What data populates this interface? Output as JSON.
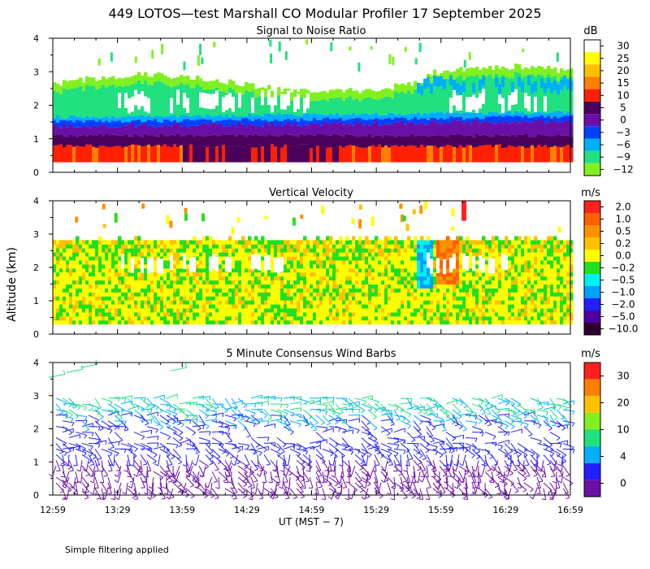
{
  "title": "449 LOTOS—test Marshall CO Modular Profiler 17 September 2025",
  "ylabel": "Altitude (km)",
  "xlabel": "UT  (MST − 7)",
  "footnote": "Simple filtering applied",
  "xticks": [
    "12:59",
    "13:29",
    "13:59",
    "14:29",
    "14:59",
    "15:29",
    "15:59",
    "16:29",
    "16:59"
  ],
  "yticks": [
    "0",
    "1",
    "2",
    "3",
    "4"
  ],
  "chart_data": [
    {
      "type": "heatmap",
      "title": "Signal to Noise Ratio",
      "unit": "dB",
      "x_range": [
        "12:59",
        "16:59"
      ],
      "ylim": [
        0,
        4
      ],
      "colorbar": {
        "labels": [
          "30",
          "25",
          "20",
          "15",
          "10",
          "5",
          "0",
          "−3",
          "−6",
          "−9",
          "−12"
        ],
        "colors": [
          "#ffffff",
          "#ffff00",
          "#ffc000",
          "#ff8000",
          "#ff2000",
          "#4a005a",
          "#6a10a8",
          "#0040ff",
          "#00b0ff",
          "#20e080",
          "#80f020"
        ]
      },
      "layers": [
        {
          "alt_range": [
            0.3,
            0.8
          ],
          "snr_db": "10 to 20"
        },
        {
          "alt_range": [
            0.8,
            1.5
          ],
          "snr_db": "0 to 5"
        },
        {
          "alt_range": [
            1.5,
            2.6
          ],
          "snr_db": "-9 to 30"
        },
        {
          "alt_range": [
            2.6,
            3.2
          ],
          "snr_db": "-12 to -6"
        }
      ]
    },
    {
      "type": "heatmap",
      "title": "Vertical Velocity",
      "unit": "m/s",
      "x_range": [
        "12:59",
        "16:59"
      ],
      "ylim": [
        0,
        4
      ],
      "colorbar": {
        "labels": [
          "2.0",
          "1.0",
          "0.5",
          "0.2",
          "0.0",
          "−0.2",
          "−0.5",
          "−1.0",
          "−2.0",
          "−5.0",
          "−10.0"
        ],
        "colors": [
          "#ff2020",
          "#ff6000",
          "#ff9000",
          "#ffc000",
          "#ffff00",
          "#20e020",
          "#00f0f0",
          "#00a0ff",
          "#2020ff",
          "#5000a0",
          "#300030"
        ]
      }
    },
    {
      "type": "wind_barbs",
      "title": "5 Minute Consensus Wind Barbs",
      "unit": "m/s",
      "x_range": [
        "12:59",
        "16:59"
      ],
      "ylim": [
        0,
        4
      ],
      "colorbar": {
        "labels": [
          "30",
          "20",
          "10",
          "4",
          "0"
        ],
        "colors": [
          "#ff2020",
          "#ff8000",
          "#ffc000",
          "#80f020",
          "#20e080",
          "#00b0ff",
          "#2020ff",
          "#6a10a8"
        ]
      },
      "layers": [
        {
          "alt_range": [
            0.2,
            2.2
          ],
          "speed_ms": "0 to 4"
        },
        {
          "alt_range": [
            2.2,
            3.0
          ],
          "speed_ms": "4 to 10"
        },
        {
          "alt_range": [
            3.4,
            3.9
          ],
          "speed_ms": "10 to 20"
        }
      ]
    }
  ]
}
